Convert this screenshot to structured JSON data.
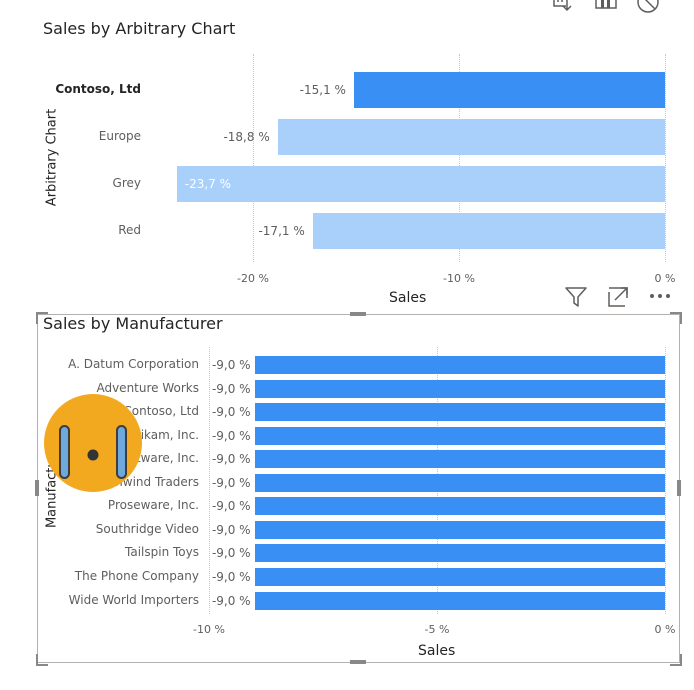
{
  "chart1": {
    "title": "Sales by Arbitrary Chart",
    "y_axis_title": "Arbitrary Chart",
    "x_axis_title": "Sales",
    "ticks": [
      "-20 %",
      "-10 %",
      "0 %"
    ]
  },
  "chart2": {
    "title": "Sales by Manufacturer",
    "y_axis_title": "Manufacturer",
    "x_axis_title": "Sales",
    "ticks": [
      "-10 %",
      "-5 %",
      "0 %"
    ]
  },
  "icons": {
    "top": [
      "drill-icon",
      "bar-chart-icon",
      "prohibit-icon"
    ],
    "visual_header": [
      "filter-icon",
      "focus-mode-icon",
      "more-options-icon"
    ],
    "overlay": "crying-face-icon"
  },
  "colors": {
    "highlight": "#3a8ff5",
    "faded": "#a9d0fb",
    "accent_face": "#f2a91f"
  },
  "chart_data": [
    {
      "type": "bar",
      "orientation": "horizontal",
      "title": "Sales by Arbitrary Chart",
      "xlabel": "Sales",
      "ylabel": "Arbitrary Chart",
      "categories": [
        "Contoso, Ltd",
        "Europe",
        "Grey",
        "Red"
      ],
      "values": [
        -15.1,
        -18.8,
        -23.7,
        -17.1
      ],
      "labels": [
        "-15,1 %",
        "-18,8 %",
        "-23,7 %",
        "-17,1 %"
      ],
      "highlighted": [
        true,
        false,
        false,
        false
      ],
      "xlim": [
        -25,
        0
      ],
      "ticks": [
        -20,
        -10,
        0
      ],
      "grid": true
    },
    {
      "type": "bar",
      "orientation": "horizontal",
      "title": "Sales by Manufacturer",
      "xlabel": "Sales",
      "ylabel": "Manufacturer",
      "categories": [
        "A. Datum Corporation",
        "Adventure Works",
        "Contoso, Ltd",
        "Fabrikam, Inc.",
        "Litware, Inc.",
        "Northwind Traders",
        "Proseware, Inc.",
        "Southridge Video",
        "Tailspin Toys",
        "The Phone Company",
        "Wide World Importers"
      ],
      "values": [
        -9.0,
        -9.0,
        -9.0,
        -9.0,
        -9.0,
        -9.0,
        -9.0,
        -9.0,
        -9.0,
        -9.0,
        -9.0
      ],
      "labels": [
        "-9,0 %",
        "-9,0 %",
        "-9,0 %",
        "-9,0 %",
        "-9,0 %",
        "-9,0 %",
        "-9,0 %",
        "-9,0 %",
        "-9,0 %",
        "-9,0 %",
        "-9,0 %"
      ],
      "xlim": [
        -10,
        0
      ],
      "ticks": [
        -10,
        -5,
        0
      ],
      "grid": true
    }
  ]
}
